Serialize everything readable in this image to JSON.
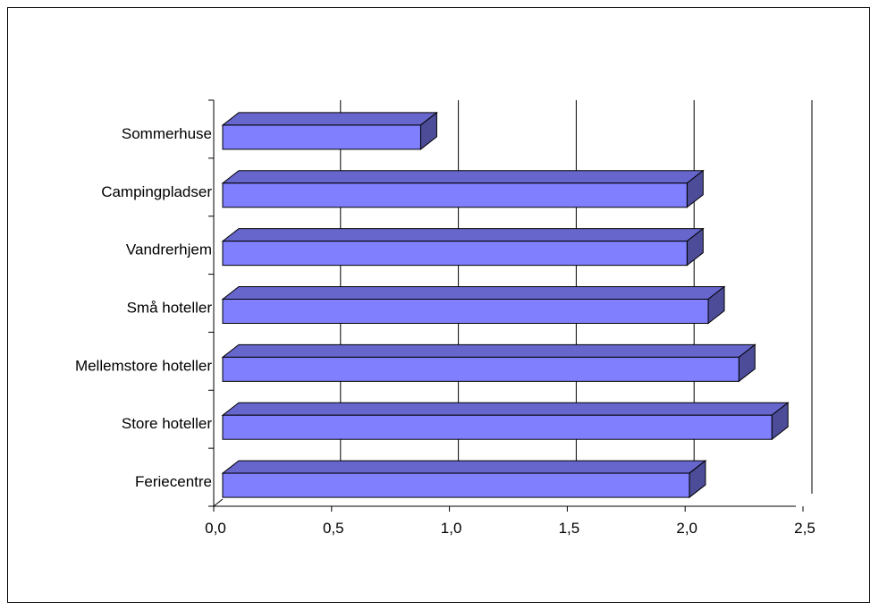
{
  "chart_data": {
    "type": "bar",
    "orientation": "horizontal",
    "style": "3d",
    "categories": [
      "Sommerhuse",
      "Campingpladser",
      "Vandrerhjem",
      "Små hoteller",
      "Mellemstore hoteller",
      "Store hoteller",
      "Feriecentre"
    ],
    "values": [
      0.84,
      1.97,
      1.97,
      2.06,
      2.19,
      2.33,
      1.98
    ],
    "xlim": [
      0,
      2.5
    ],
    "x_ticks": [
      "0,0",
      "0,5",
      "1,0",
      "1,5",
      "2,0",
      "2,5"
    ],
    "grid": "vertical",
    "colors": {
      "bar_front": "#8080ff",
      "bar_top": "#6666cc",
      "bar_side": "#4c4c99"
    }
  }
}
